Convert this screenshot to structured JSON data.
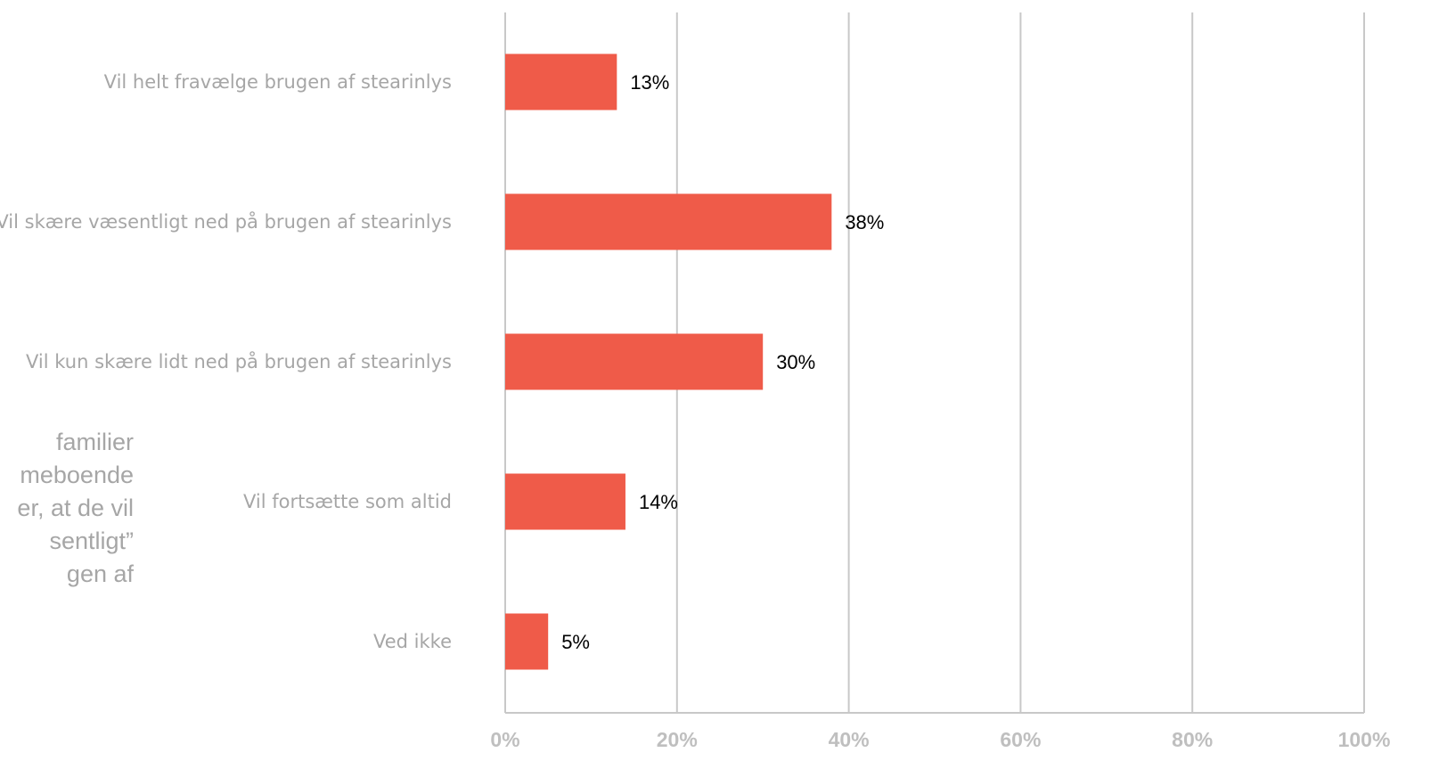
{
  "side_text": {
    "lines": [
      "familier",
      "meboende",
      "er, at de vil",
      "sentligt”",
      "gen af"
    ]
  },
  "colors": {
    "bar": "#ef5b49",
    "grid": "#c8c8c8",
    "category_text": "#a6a6a6",
    "tick_text": "#bfbfbf"
  },
  "chart_data": {
    "type": "bar",
    "orientation": "horizontal",
    "categories": [
      "Vil helt fravælge brugen af stearinlys",
      "Vil skære væsentligt ned på brugen af stearinlys",
      "Vil kun skære lidt ned på brugen af stearinlys",
      "Vil fortsætte som altid",
      "Ved ikke"
    ],
    "values": [
      13,
      38,
      30,
      14,
      5
    ],
    "data_labels": [
      "13%",
      "38%",
      "30%",
      "14%",
      "5%"
    ],
    "xlim": [
      0,
      100
    ],
    "xticks": [
      0,
      20,
      40,
      60,
      80,
      100
    ],
    "xtick_labels": [
      "0%",
      "20%",
      "40%",
      "60%",
      "80%",
      "100%"
    ],
    "grid": "vertical",
    "legend": "none"
  }
}
